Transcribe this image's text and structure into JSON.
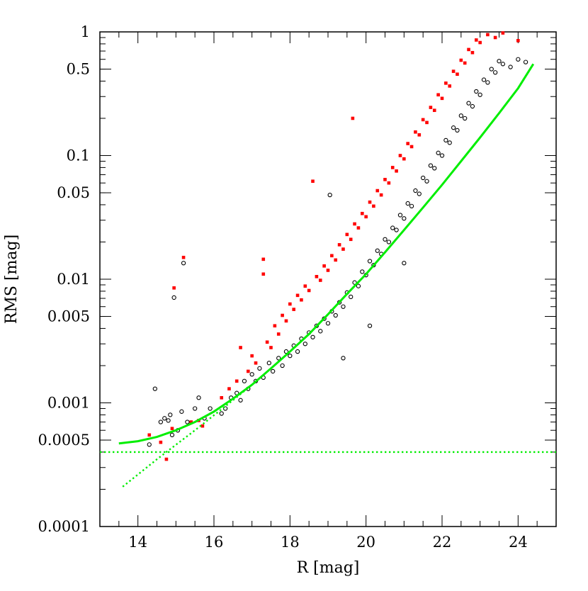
{
  "chart_data": {
    "type": "scatter",
    "title": "",
    "xlabel": "R [mag]",
    "ylabel": "RMS [mag]",
    "xlim": [
      13,
      25
    ],
    "ylim": [
      0.0001,
      1
    ],
    "y_scale": "log",
    "x_ticks": [
      {
        "value": 14,
        "label": "14"
      },
      {
        "value": 16,
        "label": "16"
      },
      {
        "value": 18,
        "label": "18"
      },
      {
        "value": 20,
        "label": "20"
      },
      {
        "value": 22,
        "label": "22"
      },
      {
        "value": 24,
        "label": "24"
      }
    ],
    "y_ticks": [
      {
        "value": 0.0001,
        "label": "0.0001"
      },
      {
        "value": 0.0005,
        "label": "0.0005"
      },
      {
        "value": 0.001,
        "label": "0.001"
      },
      {
        "value": 0.005,
        "label": "0.005"
      },
      {
        "value": 0.01,
        "label": "0.01"
      },
      {
        "value": 0.05,
        "label": "0.05"
      },
      {
        "value": 0.1,
        "label": "0.1"
      },
      {
        "value": 0.5,
        "label": "0.5"
      },
      {
        "value": 1,
        "label": "1"
      }
    ],
    "grid": false,
    "legend": "none",
    "series": [
      {
        "marker": "open-circle",
        "color": "#000000",
        "points": [
          [
            14.3,
            0.00046
          ],
          [
            14.45,
            0.0013
          ],
          [
            14.6,
            0.0007
          ],
          [
            14.7,
            0.00075
          ],
          [
            14.8,
            0.00072
          ],
          [
            14.85,
            0.0008
          ],
          [
            14.9,
            0.00055
          ],
          [
            14.95,
            0.0071
          ],
          [
            15.05,
            0.0006
          ],
          [
            15.15,
            0.00085
          ],
          [
            15.2,
            0.0135
          ],
          [
            15.3,
            0.0007
          ],
          [
            15.5,
            0.0009
          ],
          [
            15.6,
            0.0011
          ],
          [
            15.75,
            0.00075
          ],
          [
            15.9,
            0.0009
          ],
          [
            16.2,
            0.00082
          ],
          [
            16.3,
            0.0009
          ],
          [
            16.45,
            0.0011
          ],
          [
            16.6,
            0.0012
          ],
          [
            16.7,
            0.00105
          ],
          [
            16.8,
            0.0015
          ],
          [
            16.9,
            0.0013
          ],
          [
            17.0,
            0.0017
          ],
          [
            17.1,
            0.0015
          ],
          [
            17.2,
            0.0019
          ],
          [
            17.3,
            0.0016
          ],
          [
            17.45,
            0.0021
          ],
          [
            17.55,
            0.0018
          ],
          [
            17.7,
            0.0023
          ],
          [
            17.8,
            0.002
          ],
          [
            17.9,
            0.0026
          ],
          [
            18.0,
            0.0024
          ],
          [
            18.1,
            0.0029
          ],
          [
            18.2,
            0.0026
          ],
          [
            18.3,
            0.0033
          ],
          [
            18.4,
            0.003
          ],
          [
            18.5,
            0.0037
          ],
          [
            18.6,
            0.0034
          ],
          [
            18.7,
            0.0042
          ],
          [
            18.8,
            0.0038
          ],
          [
            18.9,
            0.0048
          ],
          [
            19.0,
            0.0044
          ],
          [
            19.05,
            0.048
          ],
          [
            19.1,
            0.0055
          ],
          [
            19.2,
            0.0051
          ],
          [
            19.3,
            0.0065
          ],
          [
            19.4,
            0.006
          ],
          [
            19.5,
            0.0078
          ],
          [
            19.6,
            0.0072
          ],
          [
            19.7,
            0.0094
          ],
          [
            19.8,
            0.0088
          ],
          [
            19.9,
            0.0115
          ],
          [
            20.0,
            0.0108
          ],
          [
            20.1,
            0.014
          ],
          [
            20.2,
            0.013
          ],
          [
            20.3,
            0.017
          ],
          [
            20.4,
            0.016
          ],
          [
            20.5,
            0.021
          ],
          [
            20.6,
            0.02
          ],
          [
            20.7,
            0.026
          ],
          [
            20.8,
            0.025
          ],
          [
            20.9,
            0.033
          ],
          [
            21.0,
            0.031
          ],
          [
            21.1,
            0.041
          ],
          [
            21.2,
            0.039
          ],
          [
            21.3,
            0.052
          ],
          [
            21.4,
            0.049
          ],
          [
            21.5,
            0.066
          ],
          [
            21.6,
            0.062
          ],
          [
            21.7,
            0.083
          ],
          [
            21.8,
            0.079
          ],
          [
            21.9,
            0.105
          ],
          [
            22.0,
            0.1
          ],
          [
            22.1,
            0.133
          ],
          [
            22.2,
            0.127
          ],
          [
            22.3,
            0.168
          ],
          [
            22.4,
            0.16
          ],
          [
            22.5,
            0.21
          ],
          [
            22.6,
            0.2
          ],
          [
            22.7,
            0.265
          ],
          [
            22.8,
            0.25
          ],
          [
            22.9,
            0.33
          ],
          [
            23.0,
            0.31
          ],
          [
            23.1,
            0.41
          ],
          [
            23.2,
            0.39
          ],
          [
            23.3,
            0.5
          ],
          [
            23.4,
            0.47
          ],
          [
            23.5,
            0.58
          ],
          [
            23.6,
            0.55
          ],
          [
            23.8,
            0.52
          ],
          [
            24.0,
            0.6
          ],
          [
            24.2,
            0.57
          ],
          [
            19.4,
            0.0023
          ],
          [
            20.1,
            0.0042
          ],
          [
            21.0,
            0.0135
          ]
        ]
      },
      {
        "marker": "filled-square",
        "color": "#ff0000",
        "points": [
          [
            14.3,
            0.00055
          ],
          [
            14.6,
            0.00048
          ],
          [
            14.75,
            0.00035
          ],
          [
            14.9,
            0.00062
          ],
          [
            14.95,
            0.0085
          ],
          [
            15.2,
            0.015
          ],
          [
            15.4,
            0.0007
          ],
          [
            15.6,
            0.00072
          ],
          [
            15.7,
            0.00065
          ],
          [
            16.2,
            0.0011
          ],
          [
            16.4,
            0.0013
          ],
          [
            16.6,
            0.0015
          ],
          [
            16.7,
            0.0028
          ],
          [
            16.9,
            0.0018
          ],
          [
            17.0,
            0.0024
          ],
          [
            17.1,
            0.0021
          ],
          [
            17.3,
            0.0145
          ],
          [
            17.3,
            0.011
          ],
          [
            17.4,
            0.0031
          ],
          [
            17.5,
            0.0028
          ],
          [
            17.6,
            0.0042
          ],
          [
            17.7,
            0.0036
          ],
          [
            17.8,
            0.0051
          ],
          [
            17.9,
            0.0046
          ],
          [
            18.0,
            0.0063
          ],
          [
            18.1,
            0.0057
          ],
          [
            18.2,
            0.0074
          ],
          [
            18.3,
            0.0068
          ],
          [
            18.4,
            0.0088
          ],
          [
            18.5,
            0.0081
          ],
          [
            18.6,
            0.062
          ],
          [
            18.7,
            0.0105
          ],
          [
            18.8,
            0.0098
          ],
          [
            18.9,
            0.0128
          ],
          [
            19.0,
            0.0118
          ],
          [
            19.1,
            0.0155
          ],
          [
            19.2,
            0.0143
          ],
          [
            19.3,
            0.019
          ],
          [
            19.4,
            0.0175
          ],
          [
            19.5,
            0.023
          ],
          [
            19.6,
            0.021
          ],
          [
            19.65,
            0.2
          ],
          [
            19.7,
            0.028
          ],
          [
            19.8,
            0.026
          ],
          [
            19.9,
            0.034
          ],
          [
            20.0,
            0.032
          ],
          [
            20.1,
            0.042
          ],
          [
            20.2,
            0.039
          ],
          [
            20.3,
            0.052
          ],
          [
            20.4,
            0.048
          ],
          [
            20.5,
            0.064
          ],
          [
            20.6,
            0.06
          ],
          [
            20.7,
            0.08
          ],
          [
            20.8,
            0.075
          ],
          [
            20.9,
            0.1
          ],
          [
            21.0,
            0.094
          ],
          [
            21.1,
            0.125
          ],
          [
            21.2,
            0.118
          ],
          [
            21.3,
            0.155
          ],
          [
            21.4,
            0.147
          ],
          [
            21.5,
            0.195
          ],
          [
            21.6,
            0.185
          ],
          [
            21.7,
            0.245
          ],
          [
            21.8,
            0.232
          ],
          [
            21.9,
            0.31
          ],
          [
            22.0,
            0.29
          ],
          [
            22.1,
            0.385
          ],
          [
            22.2,
            0.365
          ],
          [
            22.3,
            0.48
          ],
          [
            22.4,
            0.455
          ],
          [
            22.5,
            0.59
          ],
          [
            22.6,
            0.56
          ],
          [
            22.7,
            0.72
          ],
          [
            22.8,
            0.68
          ],
          [
            22.9,
            0.86
          ],
          [
            23.0,
            0.82
          ],
          [
            23.2,
            0.95
          ],
          [
            23.4,
            0.9
          ],
          [
            23.6,
            0.98
          ],
          [
            24.0,
            0.85
          ]
        ]
      }
    ],
    "lines": [
      {
        "style": "solid",
        "color": "#00ee00",
        "points": [
          [
            13.5,
            0.00047
          ],
          [
            14.0,
            0.00049
          ],
          [
            14.5,
            0.00053
          ],
          [
            15.0,
            0.0006
          ],
          [
            15.5,
            0.0007
          ],
          [
            16.0,
            0.00085
          ],
          [
            16.5,
            0.00108
          ],
          [
            17.0,
            0.0014
          ],
          [
            17.5,
            0.0019
          ],
          [
            18.0,
            0.0026
          ],
          [
            18.5,
            0.0036
          ],
          [
            19.0,
            0.0052
          ],
          [
            19.5,
            0.0076
          ],
          [
            20.0,
            0.011
          ],
          [
            20.5,
            0.0165
          ],
          [
            21.0,
            0.025
          ],
          [
            21.5,
            0.038
          ],
          [
            22.0,
            0.058
          ],
          [
            22.5,
            0.09
          ],
          [
            23.0,
            0.14
          ],
          [
            23.5,
            0.22
          ],
          [
            24.0,
            0.35
          ],
          [
            24.4,
            0.55
          ]
        ]
      },
      {
        "style": "dotted",
        "color": "#00ee00",
        "points": [
          [
            13.6,
            0.00021
          ],
          [
            14.5,
            0.00035
          ],
          [
            15.5,
            0.0006
          ],
          [
            16.5,
            0.00105
          ],
          [
            17.0,
            0.0014
          ]
        ]
      },
      {
        "style": "dotted",
        "color": "#00ee00",
        "points": [
          [
            13.0,
            0.0004
          ],
          [
            25.0,
            0.0004
          ]
        ]
      }
    ]
  }
}
